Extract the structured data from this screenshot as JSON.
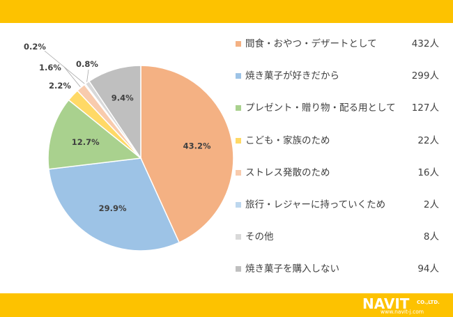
{
  "theme": {
    "band_color": "#FDC200"
  },
  "brand": {
    "name": "NAVIT",
    "suffix": "CO.,LTD.",
    "url": "www.navit-j.com"
  },
  "chart_data": {
    "type": "pie",
    "start_angle_deg": 0,
    "direction": "clockwise",
    "slices": [
      {
        "label": "間食・おやつ・デザートとして",
        "count": "432人",
        "value": 43.2,
        "pct_label": "43.2%",
        "color": "#F4B183"
      },
      {
        "label": "焼き菓子が好きだから",
        "count": "299人",
        "value": 29.9,
        "pct_label": "29.9%",
        "color": "#9DC3E6"
      },
      {
        "label": "プレゼント・贈り物・配る用として",
        "count": "127人",
        "value": 12.7,
        "pct_label": "12.7%",
        "color": "#A9D18E"
      },
      {
        "label": "こども・家族のため",
        "count": "22人",
        "value": 2.2,
        "pct_label": "2.2%",
        "color": "#FFD966"
      },
      {
        "label": "ストレス発散のため",
        "count": "16人",
        "value": 1.6,
        "pct_label": "1.6%",
        "color": "#F8CBAD"
      },
      {
        "label": "旅行・レジャーに持っていくため",
        "count": "2人",
        "value": 0.2,
        "pct_label": "0.2%",
        "color": "#BDD7EE"
      },
      {
        "label": "その他",
        "count": "8人",
        "value": 0.8,
        "pct_label": "0.8%",
        "color": "#D9D9D9"
      },
      {
        "label": "焼き菓子を購入しない",
        "count": "94人",
        "value": 9.4,
        "pct_label": "9.4%",
        "color": "#BFBFBF"
      }
    ]
  }
}
